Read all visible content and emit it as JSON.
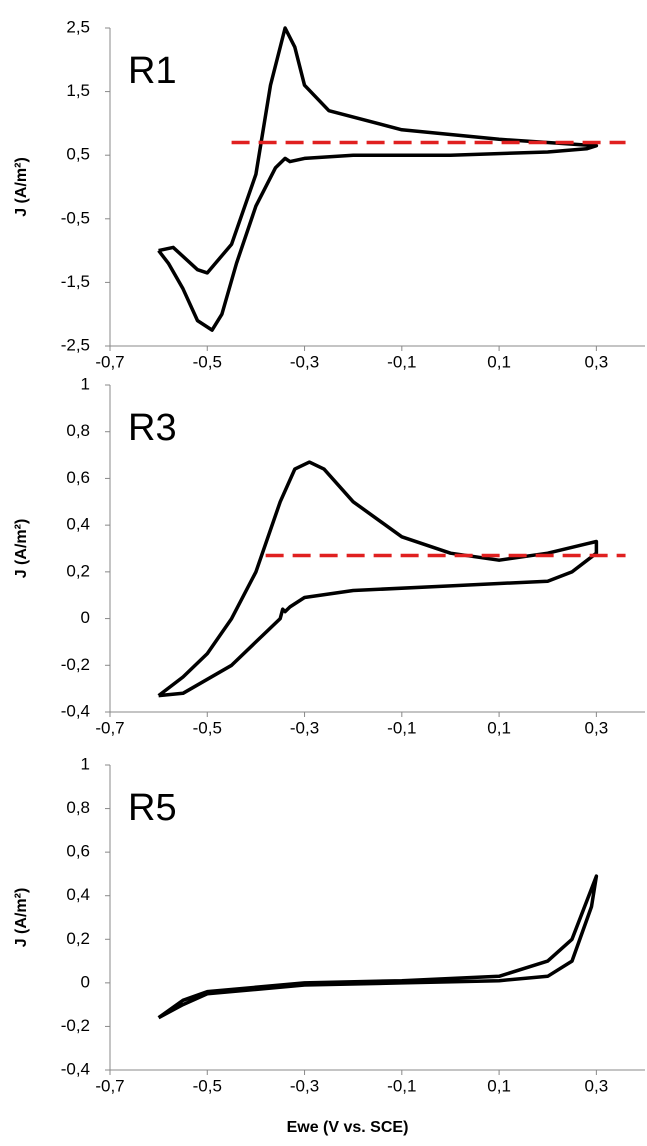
{
  "chart_data": [
    {
      "type": "line",
      "annotation": "R1",
      "y_label": "J (A/m²)",
      "color": "#000000",
      "xlim": [
        -0.7,
        0.4
      ],
      "ylim": [
        -2.5,
        2.5
      ],
      "xticks": [
        {
          "value": -0.7,
          "label": "-0,7"
        },
        {
          "value": -0.5,
          "label": "-0,5"
        },
        {
          "value": -0.3,
          "label": "-0,3"
        },
        {
          "value": -0.1,
          "label": "-0,1"
        },
        {
          "value": 0.1,
          "label": "0,1"
        },
        {
          "value": 0.3,
          "label": "0,3"
        }
      ],
      "yticks": [
        {
          "value": -2.5,
          "label": "-2,5"
        },
        {
          "value": -1.5,
          "label": "-1,5"
        },
        {
          "value": -0.5,
          "label": "-0,5"
        },
        {
          "value": 0.5,
          "label": "0,5"
        },
        {
          "value": 1.5,
          "label": "1,5"
        },
        {
          "value": 2.5,
          "label": "2,5"
        }
      ],
      "x": [
        -0.6,
        -0.57,
        -0.52,
        -0.5,
        -0.45,
        -0.4,
        -0.37,
        -0.34,
        -0.32,
        -0.3,
        -0.25,
        -0.1,
        0.1,
        0.3,
        0.28,
        0.2,
        0,
        -0.2,
        -0.3,
        -0.33,
        -0.34,
        -0.36,
        -0.4,
        -0.44,
        -0.47,
        -0.49,
        -0.52,
        -0.55,
        -0.58,
        -0.6
      ],
      "values": [
        -1.0,
        -0.95,
        -1.3,
        -1.35,
        -0.9,
        0.2,
        1.6,
        2.5,
        2.2,
        1.6,
        1.2,
        0.9,
        0.75,
        0.65,
        0.6,
        0.55,
        0.5,
        0.5,
        0.45,
        0.4,
        0.45,
        0.3,
        -0.3,
        -1.2,
        -2.0,
        -2.25,
        -2.1,
        -1.6,
        -1.2,
        -1.0
      ],
      "reference_line": {
        "value": 0.7,
        "x": [
          -0.45,
          0.36
        ],
        "color": "#e02020"
      }
    },
    {
      "type": "line",
      "annotation": "R3",
      "y_label": "J (A/m²)",
      "color": "#000000",
      "xlim": [
        -0.7,
        0.4
      ],
      "ylim": [
        -0.4,
        1
      ],
      "xticks": [
        {
          "value": -0.7,
          "label": "-0,7"
        },
        {
          "value": -0.5,
          "label": "-0,5"
        },
        {
          "value": -0.3,
          "label": "-0,3"
        },
        {
          "value": -0.1,
          "label": "-0,1"
        },
        {
          "value": 0.1,
          "label": "0,1"
        },
        {
          "value": 0.3,
          "label": "0,3"
        }
      ],
      "yticks": [
        {
          "value": -0.4,
          "label": "-0,4"
        },
        {
          "value": -0.2,
          "label": "-0,2"
        },
        0,
        {
          "value": 0.2,
          "label": "0,2"
        },
        {
          "value": 0.4,
          "label": "0,4"
        },
        {
          "value": 0.6,
          "label": "0,6"
        },
        {
          "value": 0.8,
          "label": "0,8"
        },
        1
      ],
      "x": [
        -0.6,
        -0.55,
        -0.5,
        -0.45,
        -0.4,
        -0.35,
        -0.32,
        -0.29,
        -0.26,
        -0.2,
        -0.1,
        0,
        0.1,
        0.2,
        0.28,
        0.3,
        0.3,
        0.25,
        0.2,
        0.1,
        0,
        -0.2,
        -0.3,
        -0.33,
        -0.34,
        -0.345,
        -0.35,
        -0.4,
        -0.45,
        -0.5,
        -0.55,
        -0.6
      ],
      "values": [
        -0.33,
        -0.25,
        -0.15,
        0.0,
        0.2,
        0.5,
        0.64,
        0.67,
        0.64,
        0.5,
        0.35,
        0.28,
        0.25,
        0.28,
        0.32,
        0.33,
        0.28,
        0.2,
        0.16,
        0.15,
        0.14,
        0.12,
        0.09,
        0.05,
        0.03,
        0.04,
        0.0,
        -0.1,
        -0.2,
        -0.26,
        -0.32,
        -0.33
      ],
      "reference_line": {
        "value": 0.27,
        "x": [
          -0.38,
          0.36
        ],
        "color": "#e02020"
      }
    },
    {
      "type": "line",
      "annotation": "R5",
      "y_label": "J (A/m²)",
      "x_label": "Ewe (V vs. SCE)",
      "color": "#000000",
      "xlim": [
        -0.7,
        0.4
      ],
      "ylim": [
        -0.4,
        1
      ],
      "xticks": [
        {
          "value": -0.7,
          "label": "-0,7"
        },
        {
          "value": -0.5,
          "label": "-0,5"
        },
        {
          "value": -0.3,
          "label": "-0,3"
        },
        {
          "value": -0.1,
          "label": "-0,1"
        },
        {
          "value": 0.1,
          "label": "0,1"
        },
        {
          "value": 0.3,
          "label": "0,3"
        }
      ],
      "yticks": [
        {
          "value": -0.4,
          "label": "-0,4"
        },
        {
          "value": -0.2,
          "label": "-0,2"
        },
        0,
        {
          "value": 0.2,
          "label": "0,2"
        },
        {
          "value": 0.4,
          "label": "0,4"
        },
        {
          "value": 0.6,
          "label": "0,6"
        },
        {
          "value": 0.8,
          "label": "0,8"
        },
        1
      ],
      "x": [
        -0.6,
        -0.55,
        -0.5,
        -0.3,
        -0.1,
        0.1,
        0.2,
        0.25,
        0.3,
        0.29,
        0.25,
        0.2,
        0.1,
        -0.1,
        -0.3,
        -0.5,
        -0.55,
        -0.6
      ],
      "values": [
        -0.16,
        -0.08,
        -0.04,
        0.0,
        0.01,
        0.03,
        0.1,
        0.2,
        0.49,
        0.35,
        0.1,
        0.03,
        0.01,
        0.0,
        -0.01,
        -0.05,
        -0.1,
        -0.16
      ]
    }
  ]
}
